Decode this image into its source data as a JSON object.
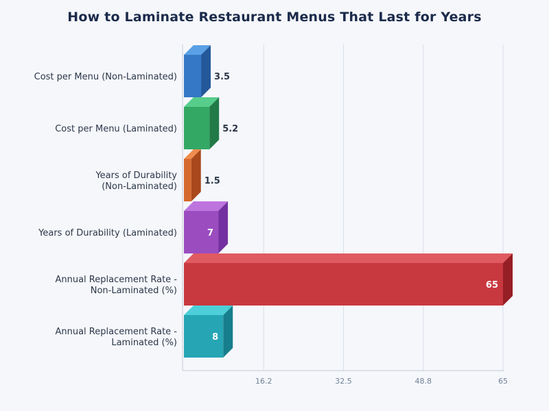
{
  "chart_data": {
    "type": "bar",
    "orientation": "horizontal",
    "title": "How to Laminate Restaurant Menus That Last for Years",
    "categories": [
      "Cost per Menu (Non-Laminated)",
      "Cost per Menu (Laminated)",
      "Years of Durability (Non-Laminated)",
      "Years of Durability (Laminated)",
      "Annual Replacement Rate - Non-Laminated (%)",
      "Annual Replacement Rate - Laminated (%)"
    ],
    "values": [
      3.5,
      5.2,
      1.5,
      7,
      65,
      8
    ],
    "data_labels": [
      "3.5",
      "5.2",
      "1.5",
      "7",
      "65",
      "8"
    ],
    "xlim": [
      0,
      65
    ],
    "xticks": [
      "16.2",
      "32.5",
      "48.8",
      "65"
    ],
    "xtick_values": [
      16.25,
      32.5,
      48.75,
      65
    ],
    "grid": true,
    "colors": [
      "#3478c6",
      "#33a865",
      "#d6692e",
      "#9b4dbf",
      "#c8383f",
      "#26a5b5"
    ],
    "side_colors": [
      "#24589a",
      "#227a47",
      "#a8481c",
      "#7430a0",
      "#961e25",
      "#177f8c"
    ],
    "top_colors": [
      "#5aa0e6",
      "#57cd8c",
      "#ef8c4e",
      "#bd74dd",
      "#e05a61",
      "#4ccfd9"
    ]
  }
}
